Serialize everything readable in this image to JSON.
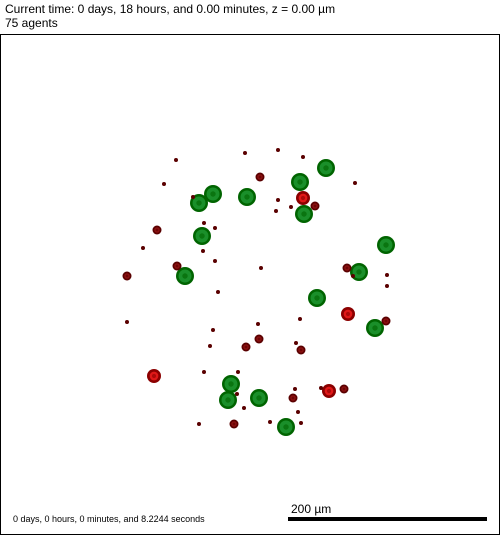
{
  "header": {
    "time_line": "Current time: 0 days, 18 hours, and 0.00 minutes, z = 0.00 µm",
    "agents_line": "75 agents"
  },
  "footer": {
    "elapsed": "0 days, 0 hours, 0 minutes, and 8.2244 seconds",
    "scalebar_label": "200 µm"
  },
  "colors": {
    "green_outer": "#006400",
    "green_inner": "#1a8f2a",
    "red_outer": "#8b0000",
    "red_inner": "#e01818",
    "dark_outer": "#5a0000",
    "dark_inner": "#8b1010"
  }
}
